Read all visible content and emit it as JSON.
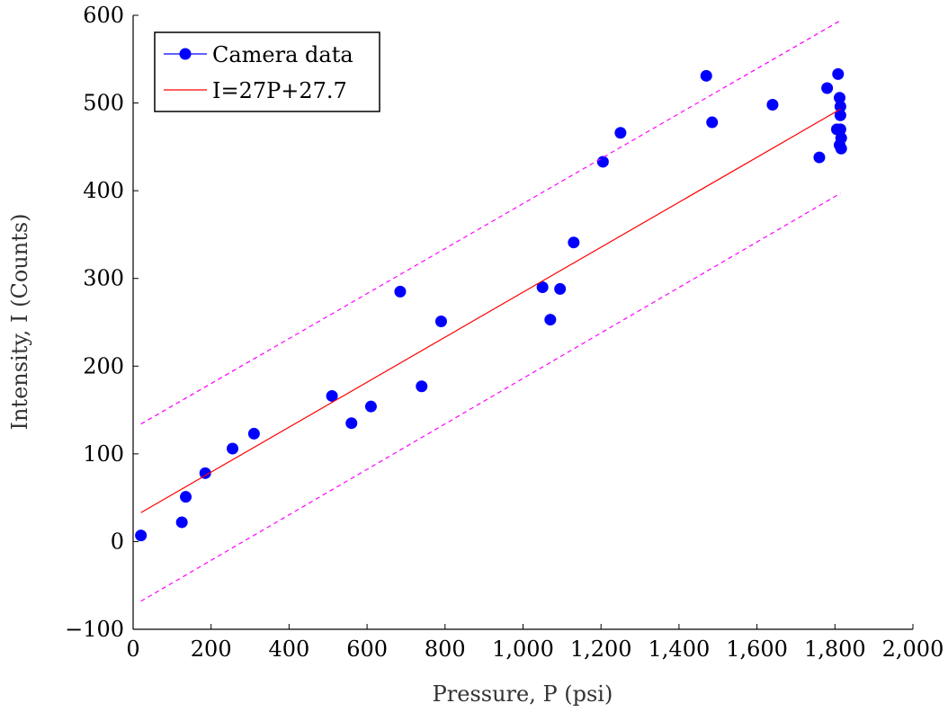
{
  "chart_data": {
    "type": "scatter",
    "xlabel": "Pressure, P (psi)",
    "ylabel": "Intensity, I (Counts)",
    "xlim": [
      0,
      2000
    ],
    "ylim": [
      -100,
      600
    ],
    "x_ticks": [
      0,
      200,
      400,
      600,
      800,
      1000,
      1200,
      1400,
      1600,
      1800,
      2000
    ],
    "x_tick_labels": [
      "0",
      "200",
      "400",
      "600",
      "800",
      "1,000",
      "1,200",
      "1,400",
      "1,600",
      "1,800",
      "2,000"
    ],
    "y_ticks": [
      -100,
      0,
      100,
      200,
      300,
      400,
      500,
      600
    ],
    "y_tick_labels": [
      "−100",
      "0",
      "100",
      "200",
      "300",
      "400",
      "500",
      "600"
    ],
    "grid": false,
    "legend_position": "top-left",
    "series": [
      {
        "name": "Camera data",
        "kind": "scatter",
        "color": "#0000ff",
        "points": [
          [
            20,
            7
          ],
          [
            125,
            22
          ],
          [
            135,
            51
          ],
          [
            185,
            78
          ],
          [
            255,
            106
          ],
          [
            310,
            123
          ],
          [
            510,
            166
          ],
          [
            560,
            135
          ],
          [
            610,
            154
          ],
          [
            685,
            285
          ],
          [
            740,
            177
          ],
          [
            790,
            251
          ],
          [
            1050,
            290
          ],
          [
            1070,
            253
          ],
          [
            1095,
            288
          ],
          [
            1130,
            341
          ],
          [
            1205,
            433
          ],
          [
            1250,
            466
          ],
          [
            1470,
            531
          ],
          [
            1485,
            478
          ],
          [
            1640,
            498
          ],
          [
            1760,
            438
          ],
          [
            1780,
            517
          ],
          [
            1805,
            470
          ],
          [
            1808,
            533
          ],
          [
            1812,
            452
          ],
          [
            1812,
            506
          ],
          [
            1814,
            496
          ],
          [
            1814,
            486
          ],
          [
            1814,
            470
          ],
          [
            1816,
            460
          ],
          [
            1816,
            448
          ]
        ]
      },
      {
        "name": "I=27P+27.7",
        "kind": "line",
        "color": "#ff0000",
        "points": [
          [
            20,
            33
          ],
          [
            1814,
            493
          ]
        ]
      },
      {
        "kind": "dashed-line",
        "color": "#ff00ff",
        "points": [
          [
            20,
            134
          ],
          [
            1814,
            594
          ]
        ]
      },
      {
        "kind": "dashed-line",
        "color": "#ff00ff",
        "points": [
          [
            20,
            -68
          ],
          [
            1814,
            397
          ]
        ]
      }
    ]
  }
}
